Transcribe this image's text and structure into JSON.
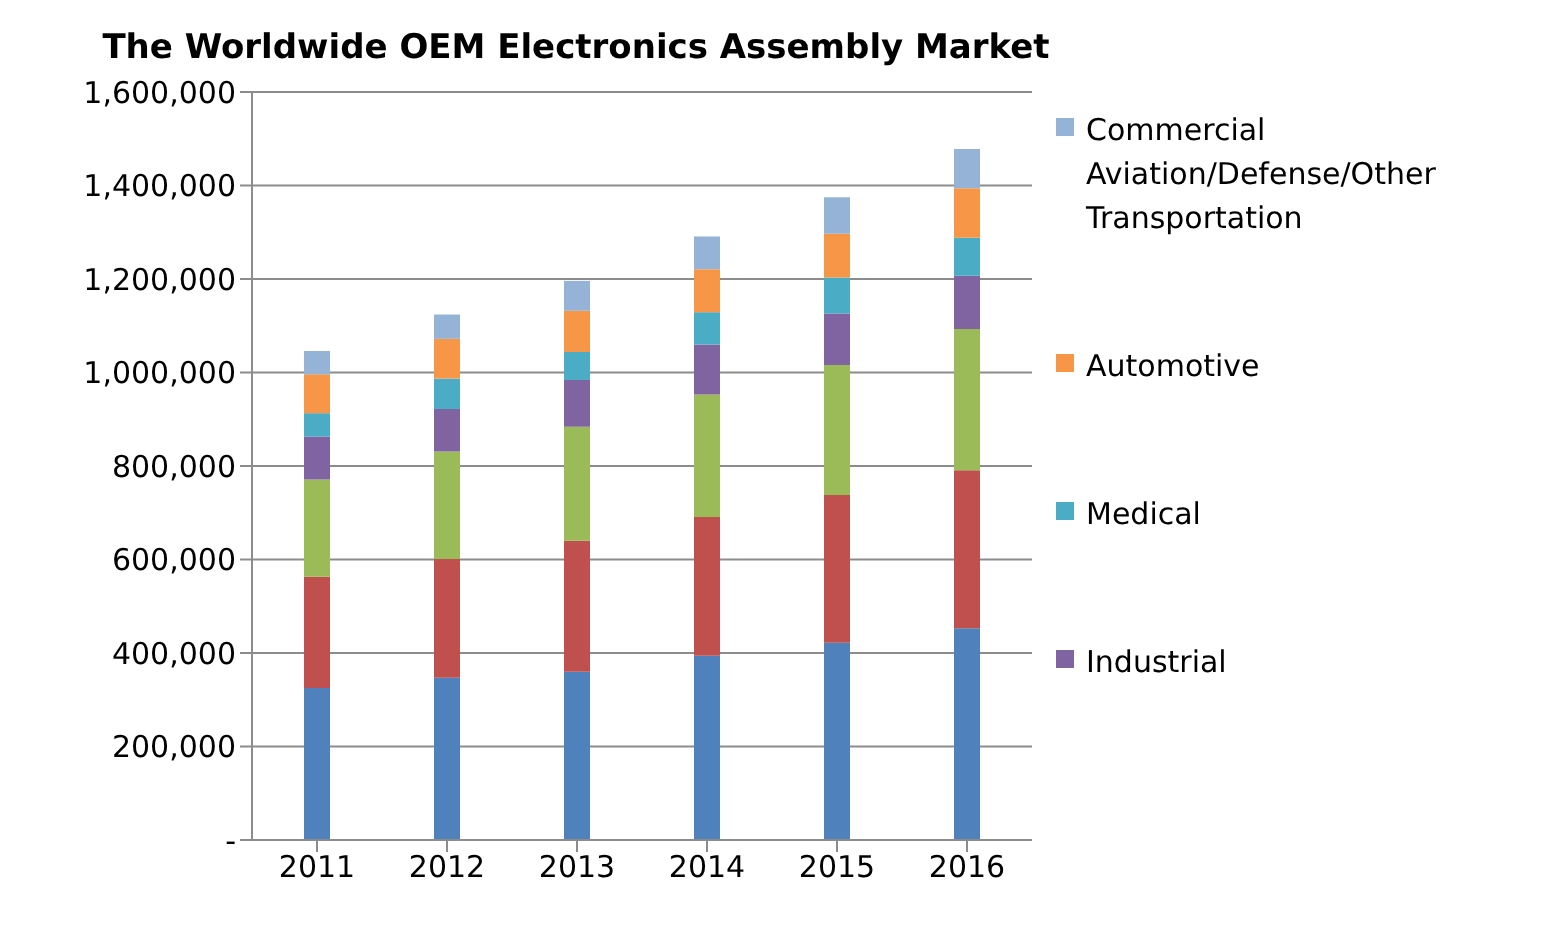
{
  "chart_data": {
    "type": "bar",
    "title": "The Worldwide OEM Electronics Assembly Market",
    "stacked": true,
    "categories": [
      "2011",
      "2012",
      "2013",
      "2014",
      "2015",
      "2016"
    ],
    "series": [
      {
        "color": "#4f81bd",
        "values": [
          325000,
          347000,
          360000,
          394000,
          422000,
          453000
        ]
      },
      {
        "color": "#c0504d",
        "values": [
          238000,
          254000,
          280000,
          297000,
          316000,
          338000
        ]
      },
      {
        "color": "#9bbb59",
        "values": [
          208000,
          230000,
          244000,
          262000,
          278000,
          302000
        ]
      },
      {
        "name": "Industrial",
        "color": "#8064a2",
        "values": [
          92000,
          91000,
          100000,
          107000,
          110000,
          114000
        ]
      },
      {
        "name": "Medical",
        "color": "#4bacc6",
        "values": [
          50000,
          65000,
          60000,
          69000,
          77000,
          81000
        ]
      },
      {
        "name": "Automotive",
        "color": "#f79646",
        "values": [
          83000,
          85000,
          88000,
          92000,
          94000,
          106000
        ]
      },
      {
        "name": "Commercial Aviation/Defense/Other Transportation",
        "color": "#95b3d7",
        "values": [
          50000,
          52000,
          64000,
          70000,
          78000,
          84000
        ]
      }
    ],
    "ylim": [
      0,
      1600000
    ],
    "yticks": [
      {
        "value": 0,
        "label": "-"
      },
      {
        "value": 200000,
        "label": "200,000"
      },
      {
        "value": 400000,
        "label": "400,000"
      },
      {
        "value": 600000,
        "label": "600,000"
      },
      {
        "value": 800000,
        "label": "800,000"
      },
      {
        "value": 1000000,
        "label": "1,000,000"
      },
      {
        "value": 1200000,
        "label": "1,200,000"
      },
      {
        "value": 1400000,
        "label": "1,400,000"
      },
      {
        "value": 1600000,
        "label": "1,600,000"
      }
    ],
    "grid": "y",
    "legend": "right"
  }
}
